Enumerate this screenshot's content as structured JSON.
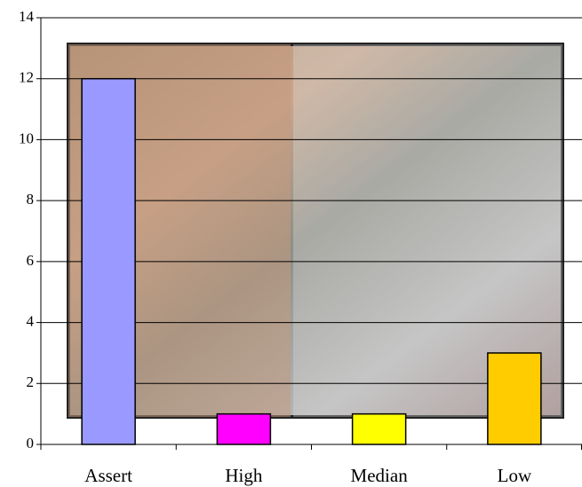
{
  "chart_data": {
    "type": "bar",
    "categories": [
      "Assert",
      "High",
      "Median",
      "Low"
    ],
    "values": [
      12,
      1,
      1,
      3
    ],
    "colors": [
      "#9999ff",
      "#ff00ff",
      "#ffff00",
      "#ffcc00"
    ],
    "ylim": [
      0,
      14
    ],
    "yticks": [
      0,
      2,
      4,
      6,
      8,
      10,
      12,
      14
    ],
    "grid": true
  }
}
